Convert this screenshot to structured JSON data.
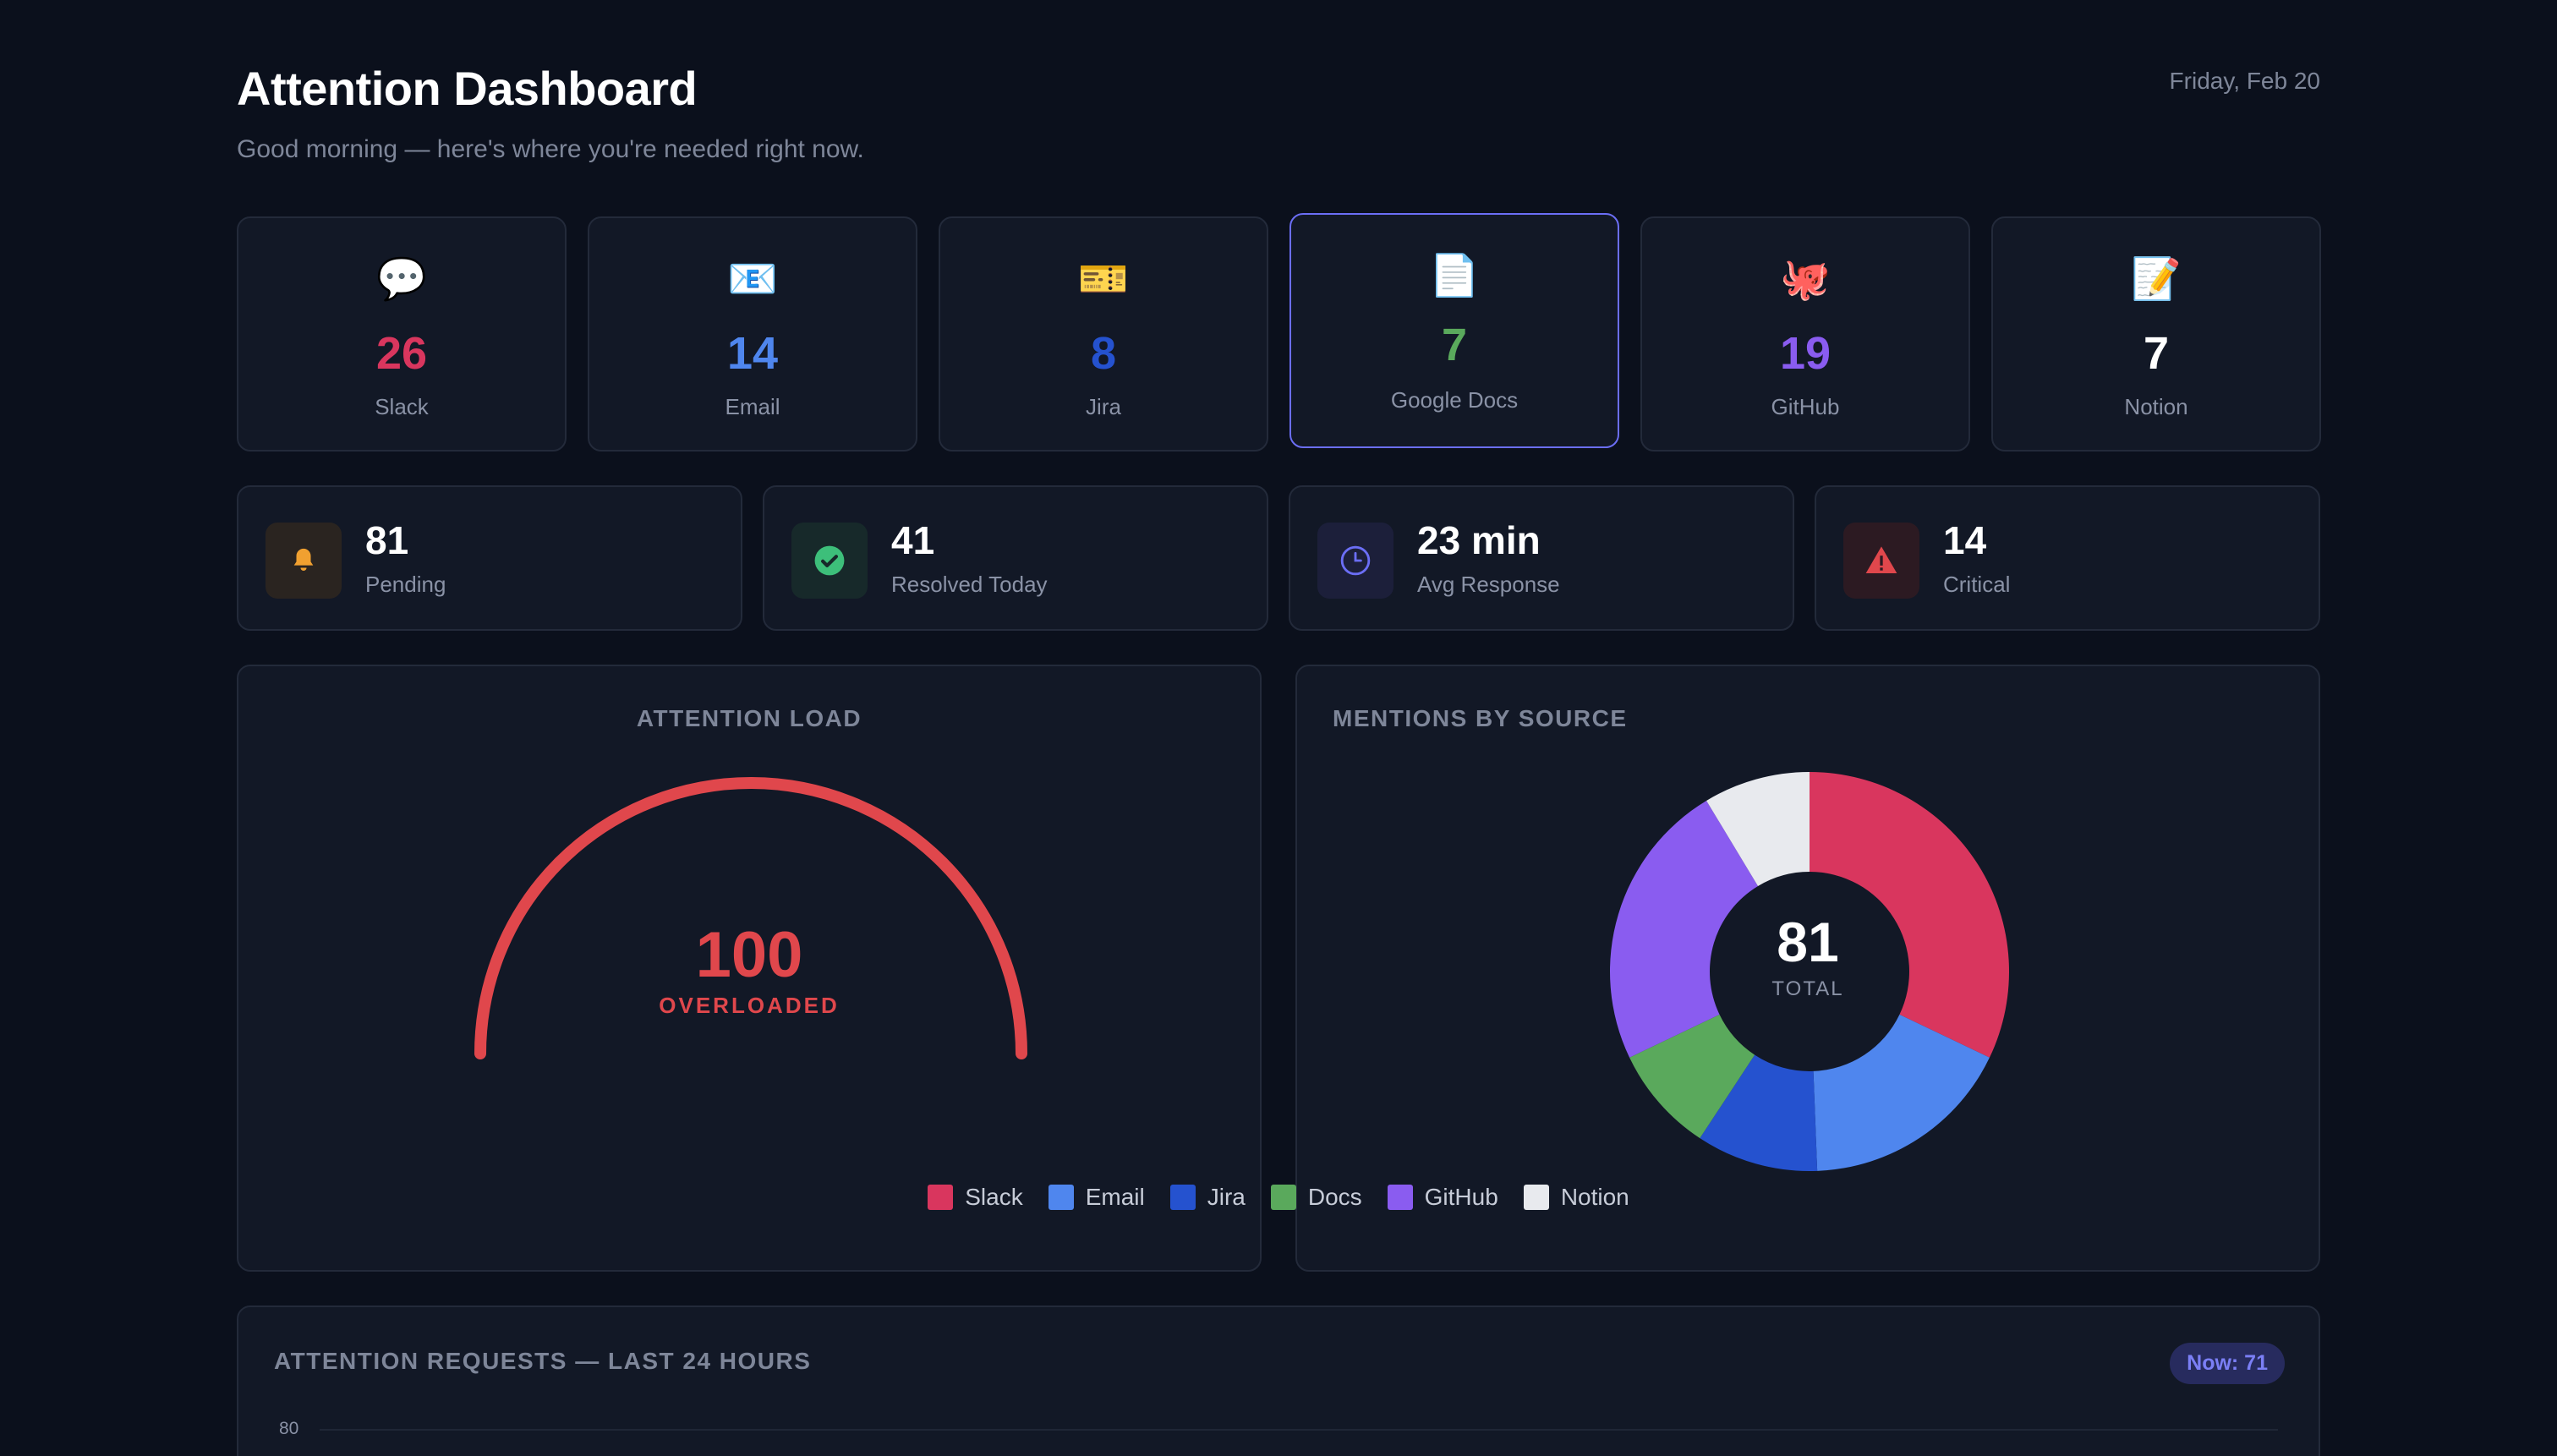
{
  "header": {
    "title": "Attention Dashboard",
    "subtitle": "Good morning — here's where you're needed right now.",
    "date": "Friday, Feb 20"
  },
  "sources": [
    {
      "name": "Slack",
      "count": "26",
      "icon": "💬",
      "icon_name": "speech-bubble-icon",
      "color": "#d9365e"
    },
    {
      "name": "Email",
      "count": "14",
      "icon": "📧",
      "icon_name": "email-icon",
      "color": "#4f86ee"
    },
    {
      "name": "Jira",
      "count": "8",
      "icon": "🎫",
      "icon_name": "ticket-icon",
      "color": "#2552cf"
    },
    {
      "name": "Google Docs",
      "count": "7",
      "icon": "📄",
      "icon_name": "document-icon",
      "color": "#5aa95c"
    },
    {
      "name": "GitHub",
      "count": "19",
      "icon": "🐙",
      "icon_name": "octopus-icon",
      "color": "#8a5cf0"
    },
    {
      "name": "Notion",
      "count": "7",
      "icon": "📝",
      "icon_name": "memo-icon",
      "color": "#ffffff"
    }
  ],
  "stats": [
    {
      "value": "81",
      "label": "Pending",
      "icon_name": "bell-icon",
      "color": "#f0a030",
      "bg": "#2a2420"
    },
    {
      "value": "41",
      "label": "Resolved Today",
      "icon_name": "check-circle-icon",
      "color": "#3dbf7a",
      "bg": "#17292a"
    },
    {
      "value": "23 min",
      "label": "Avg Response",
      "icon_name": "clock-icon",
      "color": "#6b6ef5",
      "bg": "#1c1f3a"
    },
    {
      "value": "14",
      "label": "Critical",
      "icon_name": "warning-icon",
      "color": "#e0474c",
      "bg": "#2c1a22"
    }
  ],
  "load": {
    "title": "ATTENTION LOAD",
    "value": "100",
    "status": "OVERLOADED",
    "level": 100,
    "color": "#e0474c"
  },
  "mentions": {
    "title": "MENTIONS BY SOURCE",
    "total": "81",
    "total_label": "TOTAL"
  },
  "chart_data": {
    "type": "pie",
    "categories": [
      "Slack",
      "Email",
      "Jira",
      "Docs",
      "GitHub",
      "Notion"
    ],
    "values": [
      26,
      14,
      8,
      7,
      19,
      7
    ],
    "colors": [
      "#d9365e",
      "#4f86ee",
      "#2552cf",
      "#5aa95c",
      "#8a5cf0",
      "#e8eaee"
    ],
    "legend": "bottom"
  },
  "timeline": {
    "title": "ATTENTION REQUESTS — LAST 24 HOURS",
    "badge": "Now: 71",
    "y_tick": "80"
  }
}
